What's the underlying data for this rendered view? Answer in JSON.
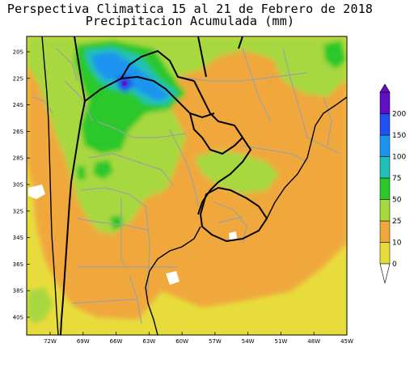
{
  "title": "Perspectiva Climatica 15 al 21 de Febrero de 2018",
  "subtitle": "Precipitacion Acumulada (mm)",
  "axes": {
    "lat_labels": [
      "20S",
      "22S",
      "24S",
      "26S",
      "28S",
      "30S",
      "32S",
      "34S",
      "36S",
      "38S",
      "40S"
    ],
    "lon_labels": [
      "72W",
      "69W",
      "66W",
      "63W",
      "60W",
      "57W",
      "54W",
      "51W",
      "48W",
      "45W"
    ]
  },
  "colorbar": {
    "levels": [
      "0",
      "10",
      "25",
      "50",
      "75",
      "100",
      "150",
      "200"
    ],
    "colors": [
      "#e8dc3c",
      "#f0a83c",
      "#a8d840",
      "#2cc82c",
      "#20c0b8",
      "#1c94f0",
      "#2050f0",
      "#6010c0"
    ]
  },
  "colors": {
    "background": "#ffffff",
    "border": "#000000",
    "country_lines": "#000000",
    "province_lines": "#a0a0a0",
    "ocean": "#ffffff"
  }
}
